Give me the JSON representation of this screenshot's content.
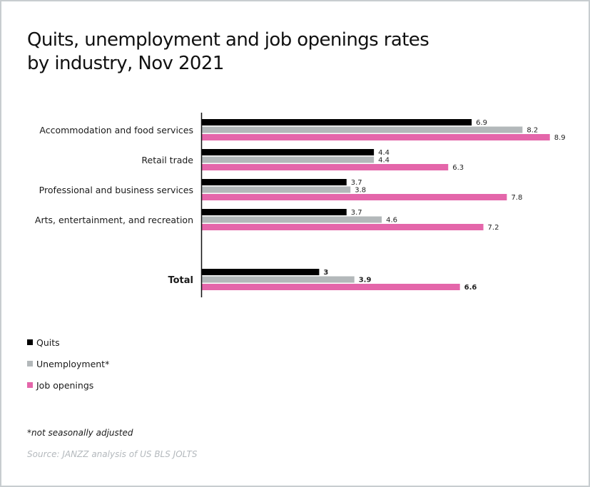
{
  "chart_data": {
    "type": "bar",
    "orientation": "horizontal",
    "title": "Quits, unemployment and job openings rates by industry, Nov 2021",
    "title_lines": [
      "Quits, unemployment and job openings rates",
      "by industry, Nov 2021"
    ],
    "categories": [
      "Accommodation and food services",
      "Retail trade",
      "Professional and business services",
      "Arts, entertainment, and recreation",
      "Total"
    ],
    "series": [
      {
        "name": "Quits",
        "color": "#000000",
        "values": [
          6.9,
          4.4,
          3.7,
          3.7,
          3
        ],
        "labels": [
          "6.9",
          "4.4",
          "3.7",
          "3.7",
          "3"
        ]
      },
      {
        "name": "Unemployment*",
        "color": "#b3b8ba",
        "values": [
          8.2,
          4.4,
          3.8,
          4.6,
          3.9
        ],
        "labels": [
          "8.2",
          "4.4",
          "3.8",
          "4.6",
          "3.9"
        ]
      },
      {
        "name": "Job openings",
        "color": "#e466aa",
        "values": [
          8.9,
          6.3,
          7.8,
          7.2,
          6.6
        ],
        "labels": [
          "8.9",
          "6.3",
          "7.8",
          "7.2",
          "6.6"
        ]
      }
    ],
    "xlim": [
      0,
      9.5
    ],
    "grid": false,
    "legend_position": "bottom-left",
    "xlabel": "",
    "ylabel": ""
  },
  "note": "*not seasonally adjusted",
  "source": "Source: JANZZ analysis of US BLS JOLTS"
}
